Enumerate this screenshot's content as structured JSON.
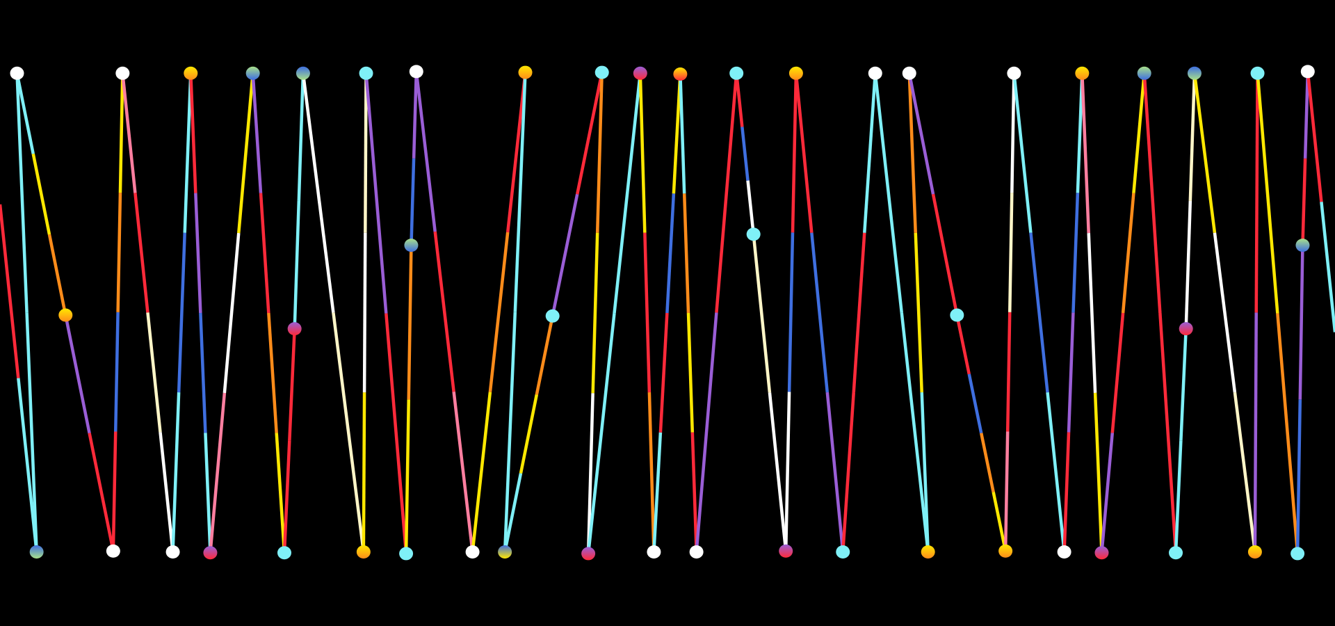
{
  "artwork": {
    "background": "#000000",
    "palette": {
      "red": "#ff2a3a",
      "cyan": "#7ff0f7",
      "yellow": "#ffe800",
      "orange": "#ff8c1a",
      "purple": "#9a5ed6",
      "blue": "#3f6fe0",
      "pink": "#ff7fa0",
      "white": "#ffffff",
      "cream": "#fff6c8",
      "green": "#a8e08a"
    }
  }
}
